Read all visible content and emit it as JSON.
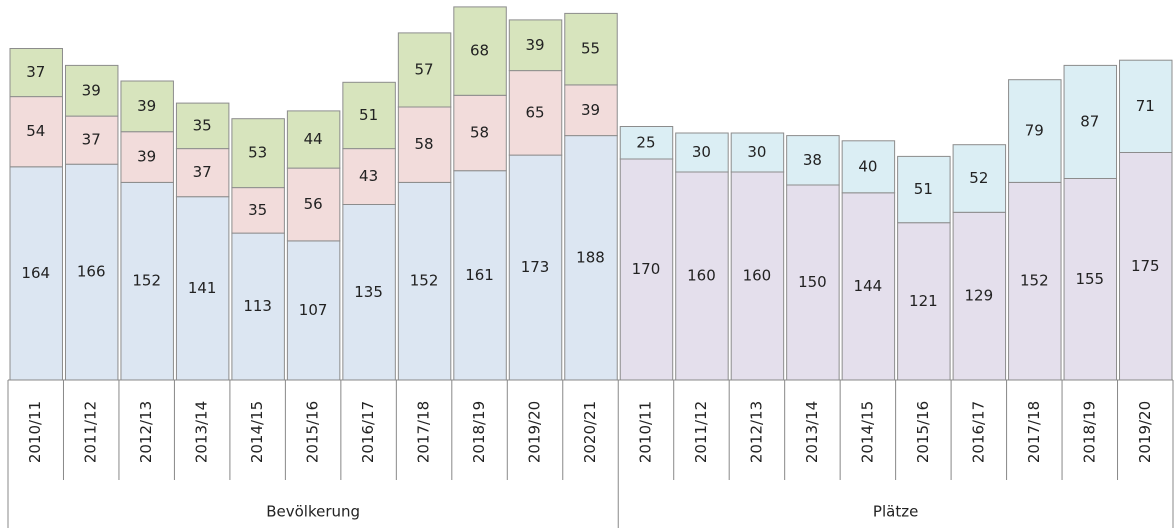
{
  "chart_data": [
    {
      "type": "bar",
      "stacked": true,
      "xlabel": "Bevölkerung",
      "categories": [
        "2010/11",
        "2011/12",
        "2012/13",
        "2013/14",
        "2014/15",
        "2015/16",
        "2016/17",
        "2017/18",
        "2018/19",
        "2019/20",
        "2020/21"
      ],
      "series": [
        {
          "color": "#dce6f2",
          "values": [
            164,
            166,
            152,
            141,
            113,
            107,
            135,
            152,
            161,
            173,
            188
          ]
        },
        {
          "color": "#f2dcdb",
          "values": [
            54,
            37,
            39,
            37,
            35,
            56,
            43,
            58,
            58,
            65,
            39
          ]
        },
        {
          "color": "#d7e4bd",
          "values": [
            37,
            39,
            39,
            35,
            53,
            44,
            51,
            57,
            68,
            39,
            55
          ]
        }
      ],
      "ylim": [
        0,
        290
      ]
    },
    {
      "type": "bar",
      "stacked": true,
      "xlabel": "Plätze",
      "categories": [
        "2010/11",
        "2011/12",
        "2012/13",
        "2013/14",
        "2014/15",
        "2015/16",
        "2016/17",
        "2017/18",
        "2018/19",
        "2019/20"
      ],
      "series": [
        {
          "color": "#e4dfec",
          "values": [
            170,
            160,
            160,
            150,
            144,
            121,
            129,
            152,
            155,
            175
          ]
        },
        {
          "color": "#dbeef4",
          "values": [
            25,
            30,
            30,
            38,
            40,
            51,
            52,
            79,
            87,
            71
          ]
        }
      ],
      "ylim": [
        0,
        290
      ]
    }
  ]
}
